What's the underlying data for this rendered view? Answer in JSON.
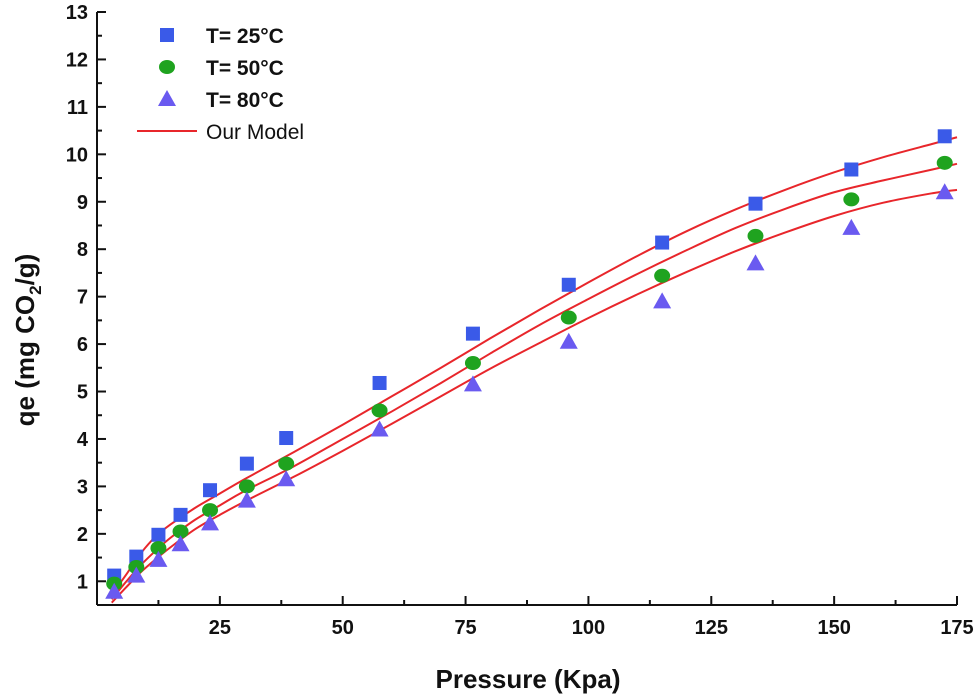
{
  "chart_data": {
    "type": "scatter",
    "title": "",
    "xlabel": "Pressure (Kpa)",
    "ylabel": {
      "prefix": "qe (mg CO",
      "subscript": "2",
      "suffix": "/g)"
    },
    "xlim": [
      0,
      175
    ],
    "ylim": [
      0.5,
      13
    ],
    "xticks": [
      25,
      50,
      75,
      100,
      125,
      150,
      175
    ],
    "yticks": [
      1,
      2,
      3,
      4,
      5,
      6,
      7,
      8,
      9,
      10,
      11,
      12,
      13
    ],
    "grid": false,
    "legend_position": "top-left",
    "series": [
      {
        "name": "T= 25°C",
        "marker": "square",
        "color": "#3A5AE8",
        "x": [
          3.5,
          8,
          12.5,
          17,
          23,
          30.5,
          38.5,
          57.5,
          76.5,
          96,
          115,
          134,
          153.5,
          172.5
        ],
        "y": [
          1.12,
          1.52,
          1.98,
          2.4,
          2.92,
          3.48,
          4.02,
          5.18,
          6.22,
          7.25,
          8.14,
          8.96,
          9.68,
          10.38
        ]
      },
      {
        "name": "T= 50°C",
        "marker": "circle",
        "color": "#1FA31F",
        "x": [
          3.5,
          8,
          12.5,
          17,
          23,
          30.5,
          38.5,
          57.5,
          76.5,
          96,
          115,
          134,
          153.5,
          172.5
        ],
        "y": [
          0.95,
          1.3,
          1.7,
          2.05,
          2.5,
          3.0,
          3.48,
          4.6,
          5.6,
          6.56,
          7.44,
          8.28,
          9.05,
          9.82
        ]
      },
      {
        "name": "T= 80°C",
        "marker": "triangle",
        "color": "#6A5AF0",
        "x": [
          3.5,
          8,
          12.5,
          17,
          23,
          30.5,
          38.5,
          57.5,
          76.5,
          96,
          115,
          134,
          153.5,
          172.5
        ],
        "y": [
          0.78,
          1.12,
          1.45,
          1.78,
          2.22,
          2.7,
          3.15,
          4.2,
          5.15,
          6.05,
          6.9,
          7.7,
          8.45,
          9.2
        ]
      }
    ],
    "model": {
      "name": "Our Model",
      "color": "#E8262B",
      "curves": [
        {
          "x": [
            3,
            6,
            9,
            12,
            15,
            20,
            25,
            30,
            40,
            50,
            60,
            70,
            80,
            90,
            100,
            110,
            120,
            130,
            140,
            150,
            160,
            170,
            175
          ],
          "y": [
            0.72,
            1.15,
            1.6,
            1.95,
            2.2,
            2.55,
            2.85,
            3.15,
            3.72,
            4.3,
            4.9,
            5.5,
            6.12,
            6.72,
            7.3,
            7.86,
            8.38,
            8.84,
            9.25,
            9.62,
            9.94,
            10.22,
            10.36
          ]
        },
        {
          "x": [
            3,
            6,
            9,
            12,
            15,
            20,
            25,
            30,
            40,
            50,
            60,
            70,
            80,
            90,
            100,
            110,
            120,
            130,
            140,
            150,
            160,
            170,
            175
          ],
          "y": [
            0.62,
            1.0,
            1.35,
            1.65,
            1.92,
            2.3,
            2.6,
            2.9,
            3.42,
            4.0,
            4.58,
            5.18,
            5.8,
            6.4,
            6.95,
            7.48,
            7.98,
            8.45,
            8.85,
            9.2,
            9.45,
            9.68,
            9.8
          ]
        },
        {
          "x": [
            3,
            6,
            9,
            12,
            15,
            20,
            25,
            30,
            40,
            50,
            60,
            70,
            80,
            90,
            100,
            110,
            120,
            130,
            140,
            150,
            160,
            170,
            175
          ],
          "y": [
            0.55,
            0.88,
            1.2,
            1.47,
            1.72,
            2.1,
            2.4,
            2.68,
            3.2,
            3.75,
            4.32,
            4.9,
            5.48,
            6.02,
            6.55,
            7.05,
            7.52,
            7.96,
            8.35,
            8.7,
            8.98,
            9.18,
            9.25
          ]
        }
      ]
    }
  }
}
